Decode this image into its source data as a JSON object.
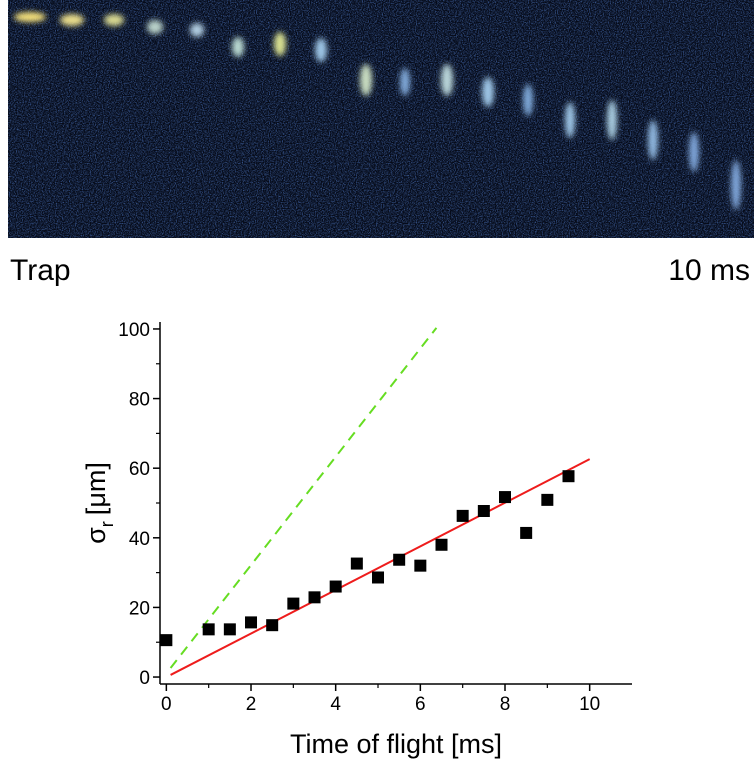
{
  "panel_labels": {
    "start": "Trap",
    "end": "10 ms"
  },
  "chart_data": {
    "type": "scatter",
    "xlabel": "Time of flight [ms]",
    "ylabel": [
      "σ",
      "r",
      "[μm]"
    ],
    "xlim": [
      -0.15,
      11
    ],
    "ylim": [
      -2,
      102
    ],
    "xticks": [
      0,
      2,
      4,
      6,
      8,
      10
    ],
    "yticks": [
      0,
      20,
      40,
      60,
      80,
      100
    ],
    "xminorticks": [
      1,
      3,
      5,
      7,
      9
    ],
    "yminorticks": [
      10,
      30,
      50,
      70,
      90
    ],
    "series": [
      {
        "type": "scatter",
        "color": "#000000",
        "x": [
          0,
          1,
          1.5,
          2,
          2.5,
          3,
          3.5,
          4,
          4.5,
          5,
          5.5,
          6,
          6.5,
          7,
          7.5,
          8,
          8.5,
          9,
          9.5
        ],
        "values": [
          10.6,
          13.7,
          13.7,
          15.7,
          14.9,
          21.1,
          22.9,
          26,
          32.6,
          28.6,
          33.7,
          32,
          38,
          46.3,
          47.7,
          51.7,
          41.4,
          50.9,
          57.7
        ]
      },
      {
        "type": "line",
        "color": "#ee1c1c",
        "dashed": false,
        "x": [
          0.1,
          10
        ],
        "values": [
          0.6,
          62.6
        ]
      },
      {
        "type": "line",
        "color": "#66dd22",
        "dashed": true,
        "x": [
          0.1,
          6.38
        ],
        "values": [
          2.6,
          100.3
        ]
      }
    ]
  }
}
